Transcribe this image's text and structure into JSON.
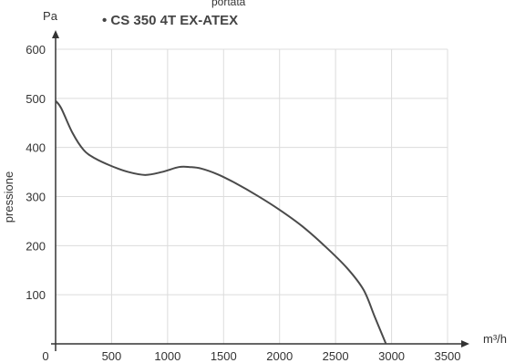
{
  "chart_data": {
    "type": "line",
    "title": "• CS 350 4T EX-ATEX",
    "top_label": "portata",
    "ylabel": "pressione",
    "y_unit": "Pa",
    "x_unit": "m³/h",
    "xlim": [
      0,
      3500
    ],
    "ylim": [
      0,
      600
    ],
    "x_ticks": [
      "0",
      "500",
      "1000",
      "1500",
      "2000",
      "2500",
      "3000",
      "3500"
    ],
    "y_ticks": [
      "100",
      "200",
      "300",
      "400",
      "500",
      "600"
    ],
    "grid": true,
    "series": [
      {
        "color": "#4a4a4a",
        "x": [
          0,
          50,
          150,
          250,
          350,
          500,
          650,
          800,
          950,
          1100,
          1200,
          1300,
          1450,
          1600,
          1800,
          2000,
          2200,
          2400,
          2600,
          2750,
          2850,
          2950
        ],
        "y": [
          495,
          480,
          430,
          395,
          378,
          362,
          350,
          344,
          350,
          360,
          360,
          357,
          345,
          328,
          302,
          273,
          240,
          200,
          155,
          110,
          55,
          0
        ]
      }
    ]
  }
}
